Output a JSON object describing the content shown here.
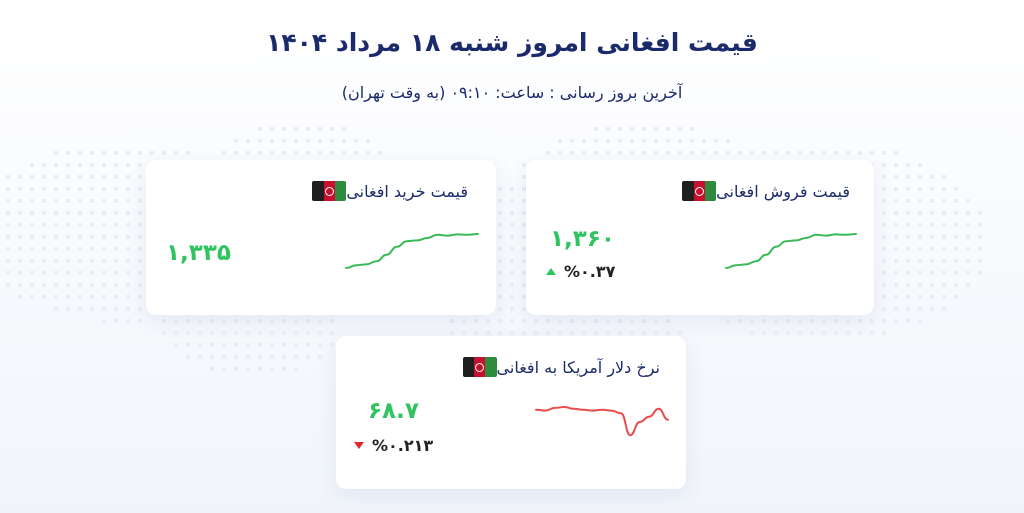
{
  "page": {
    "title": "قیمت افغانی امروز شنبه ۱۸ مرداد ۱۴۰۴",
    "subtitle": "آخرین بروز رسانی : ساعت: ۰۹:۱۰ (به وقت تهران)"
  },
  "colors": {
    "title": "#1b2a6b",
    "up": "#2fc45f",
    "down": "#e0262e",
    "spark_up": "#3aba57",
    "spark_down": "#e84c4c"
  },
  "cards": {
    "buy": {
      "title": "قیمت خرید افغانی",
      "flag_icon": "afghanistan-flag-icon",
      "price": "۱,۳۳۵",
      "trend": [
        0.05,
        0.12,
        0.14,
        0.22,
        0.38,
        0.58,
        0.72,
        0.74,
        0.8,
        0.88,
        0.86,
        0.89,
        0.88,
        0.9
      ]
    },
    "sell": {
      "title": "قیمت فروش افغانی",
      "flag_icon": "afghanistan-flag-icon",
      "price": "۱,۳۶۰",
      "change": "%۰.۳۷",
      "change_direction": "up",
      "trend": [
        0.05,
        0.12,
        0.14,
        0.22,
        0.38,
        0.58,
        0.72,
        0.74,
        0.8,
        0.88,
        0.86,
        0.89,
        0.88,
        0.9
      ]
    },
    "usd": {
      "title": "نرخ دلار آمریکا به افغانی",
      "flag_icon": "afghanistan-flag-icon",
      "price": "۶۸.۷",
      "change": "%۰.۲۱۳",
      "change_direction": "down",
      "trend": [
        0.78,
        0.76,
        0.82,
        0.84,
        0.8,
        0.78,
        0.76,
        0.78,
        0.76,
        0.7,
        0.2,
        0.5,
        0.62,
        0.8,
        0.55
      ]
    }
  }
}
